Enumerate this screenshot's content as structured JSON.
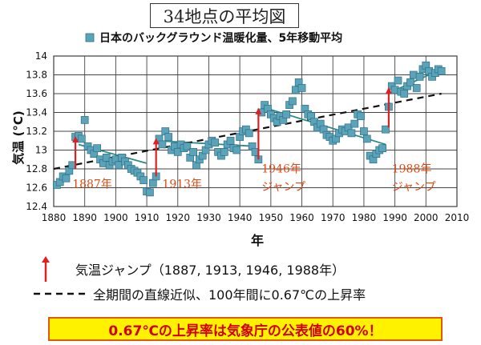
{
  "title": "34地点の平均図",
  "colors": {
    "marker": "#5ba3b9",
    "marker_edge": "#2f6f86",
    "trend": "#2b8a8a",
    "jump": "#e02020",
    "jump_text": "#e04a10",
    "dashed": "#111111",
    "note_bg": "#fff200",
    "note_text": "#d40000"
  },
  "chart_data": {
    "type": "scatter",
    "legend": "日本のバックグラウンド温暖化量、5年移動平均",
    "xlabel": "年",
    "ylabel": "気温 (°C)",
    "xlim": [
      1880,
      2010
    ],
    "ylim": [
      12.4,
      14.0
    ],
    "xticks": [
      1880,
      1890,
      1900,
      1910,
      1920,
      1930,
      1940,
      1950,
      1960,
      1970,
      1980,
      1990,
      2000,
      2010
    ],
    "yticks": [
      12.4,
      12.6,
      12.8,
      13.0,
      13.2,
      13.4,
      13.6,
      13.8,
      14.0
    ],
    "ytick_labels": [
      "12.4",
      "12.6",
      "12.8",
      "13",
      "13.2",
      "13.4",
      "13.6",
      "13.8",
      "14"
    ],
    "grid": true,
    "points": [
      [
        1881,
        12.63
      ],
      [
        1882,
        12.66
      ],
      [
        1883,
        12.72
      ],
      [
        1884,
        12.7
      ],
      [
        1885,
        12.78
      ],
      [
        1886,
        12.84
      ],
      [
        1887,
        13.14
      ],
      [
        1888,
        13.15
      ],
      [
        1889,
        13.12
      ],
      [
        1890,
        13.32
      ],
      [
        1891,
        13.04
      ],
      [
        1892,
        13.0
      ],
      [
        1893,
        12.96
      ],
      [
        1894,
        13.02
      ],
      [
        1895,
        12.9
      ],
      [
        1896,
        12.86
      ],
      [
        1897,
        12.92
      ],
      [
        1898,
        12.84
      ],
      [
        1899,
        12.88
      ],
      [
        1900,
        12.9
      ],
      [
        1901,
        12.84
      ],
      [
        1902,
        12.92
      ],
      [
        1903,
        12.88
      ],
      [
        1904,
        12.84
      ],
      [
        1905,
        12.8
      ],
      [
        1906,
        12.78
      ],
      [
        1907,
        12.76
      ],
      [
        1908,
        12.72
      ],
      [
        1909,
        12.68
      ],
      [
        1910,
        12.56
      ],
      [
        1911,
        12.55
      ],
      [
        1912,
        12.65
      ],
      [
        1913,
        12.72
      ],
      [
        1914,
        13.12
      ],
      [
        1915,
        13.06
      ],
      [
        1916,
        13.2
      ],
      [
        1917,
        13.14
      ],
      [
        1918,
        13.0
      ],
      [
        1919,
        13.04
      ],
      [
        1920,
        12.98
      ],
      [
        1921,
        13.06
      ],
      [
        1922,
        13.02
      ],
      [
        1923,
        13.04
      ],
      [
        1924,
        12.92
      ],
      [
        1925,
        12.98
      ],
      [
        1926,
        12.84
      ],
      [
        1927,
        12.9
      ],
      [
        1928,
        12.94
      ],
      [
        1929,
        13.0
      ],
      [
        1930,
        13.06
      ],
      [
        1931,
        13.1
      ],
      [
        1932,
        13.08
      ],
      [
        1933,
        12.98
      ],
      [
        1934,
        12.94
      ],
      [
        1935,
        12.98
      ],
      [
        1936,
        13.06
      ],
      [
        1937,
        13.1
      ],
      [
        1938,
        13.02
      ],
      [
        1939,
        13.0
      ],
      [
        1940,
        13.14
      ],
      [
        1941,
        13.2
      ],
      [
        1942,
        13.22
      ],
      [
        1943,
        13.18
      ],
      [
        1944,
        13.04
      ],
      [
        1945,
        12.98
      ],
      [
        1946,
        12.9
      ],
      [
        1947,
        13.4
      ],
      [
        1948,
        13.48
      ],
      [
        1949,
        13.44
      ],
      [
        1950,
        13.38
      ],
      [
        1951,
        13.34
      ],
      [
        1952,
        13.3
      ],
      [
        1953,
        13.36
      ],
      [
        1954,
        13.32
      ],
      [
        1955,
        13.38
      ],
      [
        1956,
        13.48
      ],
      [
        1957,
        13.52
      ],
      [
        1958,
        13.64
      ],
      [
        1959,
        13.72
      ],
      [
        1960,
        13.66
      ],
      [
        1961,
        13.44
      ],
      [
        1962,
        13.38
      ],
      [
        1963,
        13.36
      ],
      [
        1964,
        13.3
      ],
      [
        1965,
        13.24
      ],
      [
        1966,
        13.28
      ],
      [
        1967,
        13.22
      ],
      [
        1968,
        13.16
      ],
      [
        1969,
        13.14
      ],
      [
        1970,
        13.1
      ],
      [
        1971,
        13.12
      ],
      [
        1972,
        13.18
      ],
      [
        1973,
        13.22
      ],
      [
        1974,
        13.2
      ],
      [
        1975,
        13.24
      ],
      [
        1976,
        13.18
      ],
      [
        1977,
        13.28
      ],
      [
        1978,
        13.38
      ],
      [
        1979,
        13.36
      ],
      [
        1980,
        13.2
      ],
      [
        1981,
        13.12
      ],
      [
        1982,
        12.94
      ],
      [
        1983,
        12.9
      ],
      [
        1984,
        12.96
      ],
      [
        1985,
        13.0
      ],
      [
        1986,
        13.02
      ],
      [
        1987,
        13.22
      ],
      [
        1988,
        13.46
      ],
      [
        1989,
        13.68
      ],
      [
        1990,
        13.64
      ],
      [
        1991,
        13.74
      ],
      [
        1992,
        13.62
      ],
      [
        1993,
        13.6
      ],
      [
        1994,
        13.68
      ],
      [
        1995,
        13.72
      ],
      [
        1996,
        13.8
      ],
      [
        1997,
        13.66
      ],
      [
        1998,
        13.78
      ],
      [
        1999,
        13.86
      ],
      [
        2000,
        13.9
      ],
      [
        2001,
        13.84
      ],
      [
        2002,
        13.78
      ],
      [
        2003,
        13.82
      ],
      [
        2004,
        13.86
      ],
      [
        2005,
        13.84
      ]
    ],
    "trend_segments": [
      [
        [
          1888,
          13.06
        ],
        [
          1910,
          12.86
        ]
      ],
      [
        [
          1913,
          13.1
        ],
        [
          1945,
          13.04
        ]
      ],
      [
        [
          1947,
          13.46
        ],
        [
          1987,
          13.06
        ]
      ],
      [
        [
          1989,
          13.62
        ],
        [
          2005,
          13.86
        ]
      ]
    ],
    "linear_fit": [
      [
        1880,
        12.8
      ],
      [
        2005,
        13.6
      ]
    ],
    "jumps": [
      {
        "year": 1887,
        "from": 12.8,
        "to": 13.14
      },
      {
        "year": 1913,
        "from": 12.72,
        "to": 13.12
      },
      {
        "year": 1946,
        "from": 12.9,
        "to": 13.44
      },
      {
        "year": 1988,
        "from": 13.24,
        "to": 13.66
      }
    ],
    "annotations": [
      {
        "text": "1887年",
        "x": 1886,
        "y": 12.6
      },
      {
        "text": "1913年",
        "x": 1915,
        "y": 12.6
      },
      {
        "text": "1946年",
        "x": 1947,
        "y": 12.76
      },
      {
        "text": "ジャンプ",
        "x": 1947,
        "y": 12.57
      },
      {
        "text": "1988年",
        "x": 1989,
        "y": 12.76
      },
      {
        "text": "ジャンプ",
        "x": 1989,
        "y": 12.57
      }
    ]
  },
  "legend_lines": {
    "jump": "気温ジャンプ（1887, 1913, 1946, 1988年）",
    "linear": "全期間の直線近似、100年間に0.67℃の上昇率"
  },
  "note": "0.67℃の上昇率は気象庁の公表値の60%！"
}
